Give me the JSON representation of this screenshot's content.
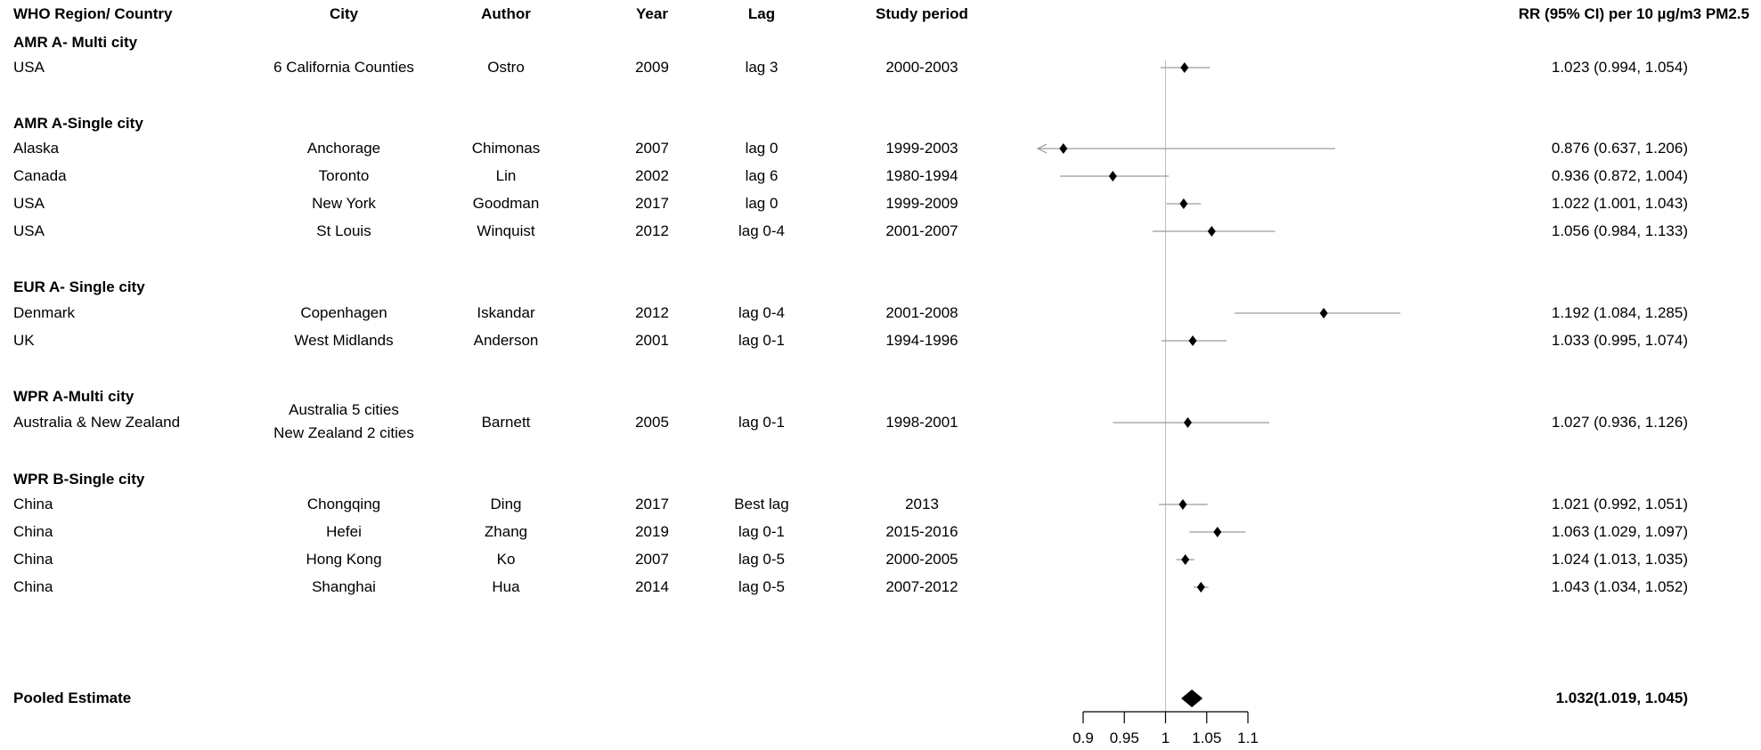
{
  "columns": {
    "region": "WHO Region/ Country",
    "city": "City",
    "author": "Author",
    "year": "Year",
    "lag": "Lag",
    "period": "Study period",
    "rr": "RR (95% CI) per 10 µg/m3 PM2.5"
  },
  "groups": [
    {
      "label": "AMR A- Multi city"
    },
    {
      "label": "AMR A-Single city"
    },
    {
      "label": "EUR A- Single city"
    },
    {
      "label": "WPR A-Multi city"
    },
    {
      "label": "WPR B-Single city"
    }
  ],
  "rows": [
    {
      "country": "USA",
      "city": "6 California Counties",
      "author": "Ostro",
      "year": "2009",
      "lag": "lag 3",
      "period": "2000-2003",
      "rr_text": "1.023 (0.994, 1.054)"
    },
    {
      "country": "Alaska",
      "city": "Anchorage",
      "author": "Chimonas",
      "year": "2007",
      "lag": "lag 0",
      "period": "1999-2003",
      "rr_text": "0.876 (0.637, 1.206)"
    },
    {
      "country": "Canada",
      "city": "Toronto",
      "author": "Lin",
      "year": "2002",
      "lag": "lag 6",
      "period": "1980-1994",
      "rr_text": "0.936 (0.872, 1.004)"
    },
    {
      "country": "USA",
      "city": "New York",
      "author": "Goodman",
      "year": "2017",
      "lag": "lag 0",
      "period": "1999-2009",
      "rr_text": "1.022 (1.001, 1.043)"
    },
    {
      "country": "USA",
      "city": "St Louis",
      "author": "Winquist",
      "year": "2012",
      "lag": "lag 0-4",
      "period": "2001-2007",
      "rr_text": "1.056 (0.984, 1.133)"
    },
    {
      "country": "Denmark",
      "city": "Copenhagen",
      "author": "Iskandar",
      "year": "2012",
      "lag": "lag 0-4",
      "period": "2001-2008",
      "rr_text": "1.192 (1.084, 1.285)"
    },
    {
      "country": "UK",
      "city": "West Midlands",
      "author": "Anderson",
      "year": "2001",
      "lag": "lag 0-1",
      "period": "1994-1996",
      "rr_text": "1.033 (0.995, 1.074)"
    },
    {
      "country": "Australia & New Zealand",
      "city": "Australia 5 cities",
      "city2": "New Zealand 2 cities",
      "author": "Barnett",
      "year": "2005",
      "lag": "lag 0-1",
      "period": "1998-2001",
      "rr_text": "1.027 (0.936, 1.126)"
    },
    {
      "country": "China",
      "city": "Chongqing",
      "author": "Ding",
      "year": "2017",
      "lag": "Best lag",
      "period": "2013",
      "rr_text": "1.021 (0.992, 1.051)"
    },
    {
      "country": "China",
      "city": "Hefei",
      "author": "Zhang",
      "year": "2019",
      "lag": "lag 0-1",
      "period": "2015-2016",
      "rr_text": "1.063 (1.029, 1.097)"
    },
    {
      "country": "China",
      "city": "Hong Kong",
      "author": "Ko",
      "year": "2007",
      "lag": "lag 0-5",
      "period": "2000-2005",
      "rr_text": "1.024 (1.013, 1.035)"
    },
    {
      "country": "China",
      "city": "Shanghai",
      "author": "Hua",
      "year": "2014",
      "lag": "lag 0-5",
      "period": "2007-2012",
      "rr_text": "1.043 (1.034, 1.052)"
    }
  ],
  "pooled": {
    "label": "Pooled Estimate",
    "rr_text": "1.032(1.019, 1.045)"
  },
  "chart_data": {
    "type": "forest",
    "x_ticks": [
      "0.9",
      "0.95",
      "1",
      "1.05",
      "1.1"
    ],
    "xlim": [
      0.9,
      1.1
    ],
    "reference_line": 1,
    "studies": [
      {
        "rr": 1.023,
        "lo": 0.994,
        "hi": 1.054
      },
      {
        "rr": 0.876,
        "lo": 0.637,
        "hi": 1.206
      },
      {
        "rr": 0.936,
        "lo": 0.872,
        "hi": 1.004
      },
      {
        "rr": 1.022,
        "lo": 1.001,
        "hi": 1.043
      },
      {
        "rr": 1.056,
        "lo": 0.984,
        "hi": 1.133
      },
      {
        "rr": 1.192,
        "lo": 1.084,
        "hi": 1.285
      },
      {
        "rr": 1.033,
        "lo": 0.995,
        "hi": 1.074
      },
      {
        "rr": 1.027,
        "lo": 0.936,
        "hi": 1.126
      },
      {
        "rr": 1.021,
        "lo": 0.992,
        "hi": 1.051
      },
      {
        "rr": 1.063,
        "lo": 1.029,
        "hi": 1.097
      },
      {
        "rr": 1.024,
        "lo": 1.013,
        "hi": 1.035
      },
      {
        "rr": 1.043,
        "lo": 1.034,
        "hi": 1.052
      }
    ],
    "pooled": {
      "rr": 1.032,
      "lo": 1.019,
      "hi": 1.045
    }
  }
}
